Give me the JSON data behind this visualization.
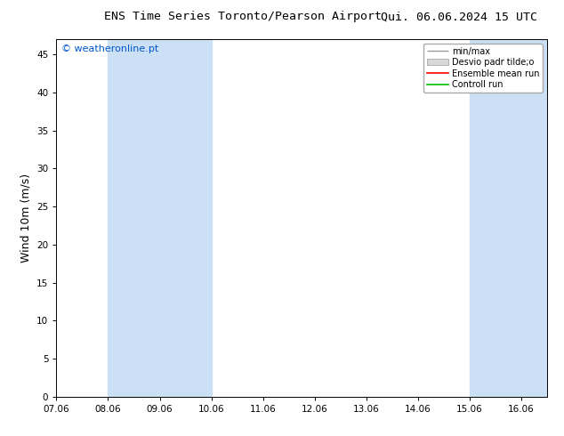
{
  "title_left": "ENS Time Series Toronto/Pearson Airport",
  "title_right": "Qui. 06.06.2024 15 UTC",
  "ylabel": "Wind 10m (m/s)",
  "watermark": "© weatheronline.pt",
  "watermark_color": "#0055cc",
  "xlim_left": 7.06,
  "xlim_right": 16.56,
  "ylim_bottom": 0,
  "ylim_top": 47,
  "yticks": [
    0,
    5,
    10,
    15,
    20,
    25,
    30,
    35,
    40,
    45
  ],
  "xtick_labels": [
    "07.06",
    "08.06",
    "09.06",
    "10.06",
    "11.06",
    "12.06",
    "13.06",
    "14.06",
    "15.06",
    "16.06"
  ],
  "xtick_positions": [
    7.06,
    8.06,
    9.06,
    10.06,
    11.06,
    12.06,
    13.06,
    14.06,
    15.06,
    16.06
  ],
  "shaded_bands": [
    {
      "x_start": 8.06,
      "x_end": 10.06
    },
    {
      "x_start": 15.06,
      "x_end": 16.06
    }
  ],
  "partial_shade_right": {
    "x_start": 16.06,
    "x_end": 16.56
  },
  "shade_color": "#cce0f5",
  "legend_entries": [
    {
      "label": "min/max",
      "color": "#aaaaaa",
      "style": "minmax"
    },
    {
      "label": "Desvio padr tilde;o",
      "color": "#cccccc",
      "style": "fill"
    },
    {
      "label": "Ensemble mean run",
      "color": "#ff0000",
      "style": "line"
    },
    {
      "label": "Controll run",
      "color": "#00bb00",
      "style": "line"
    }
  ],
  "background_color": "#ffffff",
  "plot_bg_color": "#ffffff",
  "spine_color": "#000000",
  "tick_color": "#000000",
  "grid": false,
  "font_size_title": 9.5,
  "font_size_axis": 9,
  "font_size_ticks": 7.5,
  "font_size_legend": 7,
  "font_size_watermark": 8
}
